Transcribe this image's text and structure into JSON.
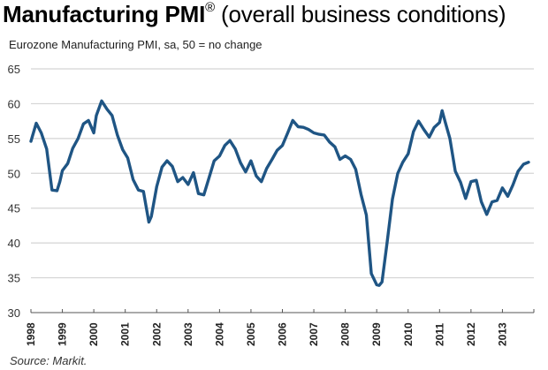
{
  "header": {
    "title_bold": "Manufacturing PMI",
    "title_mark": "®",
    "title_rest": " (overall business conditions)",
    "subtitle": "Eurozone Manufacturing PMI, sa, 50 = no change"
  },
  "footer": {
    "source": "Source: Markit."
  },
  "colors": {
    "line": "#1f5584",
    "grid": "#d4d4d4",
    "axis": "#555555"
  },
  "chart_data": {
    "type": "line",
    "title": "Manufacturing PMI® (overall business conditions)",
    "subtitle": "Eurozone Manufacturing PMI, sa, 50 = no change",
    "xlabel": "",
    "ylabel": "",
    "ylim": [
      30,
      65
    ],
    "yticks": [
      30,
      35,
      40,
      45,
      50,
      55,
      60,
      65
    ],
    "xlim": [
      1998,
      2014
    ],
    "xtick_labels": [
      "1998",
      "1999",
      "2000",
      "2001",
      "2002",
      "2003",
      "2004",
      "2005",
      "2006",
      "2007",
      "2008",
      "2009",
      "2010",
      "2011",
      "2012",
      "2013"
    ],
    "grid": true,
    "legend": "none",
    "series": [
      {
        "name": "Eurozone Manufacturing PMI",
        "x": [
          1998.0,
          1998.17,
          1998.33,
          1998.5,
          1998.67,
          1998.83,
          1998.92,
          1999.0,
          1999.17,
          1999.33,
          1999.5,
          1999.67,
          1999.83,
          2000.0,
          2000.08,
          2000.25,
          2000.42,
          2000.58,
          2000.75,
          2000.92,
          2001.08,
          2001.25,
          2001.42,
          2001.58,
          2001.75,
          2001.83,
          2002.0,
          2002.17,
          2002.33,
          2002.5,
          2002.67,
          2002.83,
          2003.0,
          2003.17,
          2003.33,
          2003.5,
          2003.67,
          2003.83,
          2004.0,
          2004.17,
          2004.33,
          2004.5,
          2004.67,
          2004.83,
          2005.0,
          2005.17,
          2005.33,
          2005.5,
          2005.67,
          2005.83,
          2006.0,
          2006.17,
          2006.33,
          2006.5,
          2006.67,
          2006.83,
          2007.0,
          2007.17,
          2007.33,
          2007.5,
          2007.67,
          2007.83,
          2008.0,
          2008.17,
          2008.33,
          2008.5,
          2008.67,
          2008.83,
          2009.0,
          2009.08,
          2009.17,
          2009.33,
          2009.5,
          2009.67,
          2009.83,
          2010.0,
          2010.17,
          2010.33,
          2010.5,
          2010.67,
          2010.83,
          2011.0,
          2011.08,
          2011.17,
          2011.33,
          2011.5,
          2011.67,
          2011.83,
          2012.0,
          2012.17,
          2012.33,
          2012.5,
          2012.67,
          2012.83,
          2013.0,
          2013.17,
          2013.33,
          2013.5,
          2013.67,
          2013.83
        ],
        "values": [
          54.6,
          57.2,
          55.8,
          53.5,
          47.6,
          47.5,
          48.8,
          50.4,
          51.4,
          53.6,
          55.0,
          57.1,
          57.6,
          55.8,
          58.3,
          60.4,
          59.2,
          58.3,
          55.5,
          53.4,
          52.2,
          49.1,
          47.6,
          47.4,
          43.0,
          43.8,
          48.1,
          50.9,
          51.8,
          51.0,
          48.8,
          49.4,
          48.4,
          50.1,
          47.1,
          46.9,
          49.4,
          51.8,
          52.5,
          54.0,
          54.7,
          53.5,
          51.5,
          50.2,
          51.8,
          49.6,
          48.8,
          50.7,
          52.0,
          53.3,
          54.0,
          55.8,
          57.6,
          56.7,
          56.6,
          56.3,
          55.8,
          55.6,
          55.5,
          54.5,
          53.8,
          52.0,
          52.5,
          52.0,
          50.6,
          47.0,
          44.0,
          35.6,
          34.0,
          33.9,
          34.4,
          40.0,
          46.3,
          50.0,
          51.6,
          52.8,
          56.0,
          57.5,
          56.3,
          55.2,
          56.6,
          57.3,
          59.0,
          57.5,
          55.0,
          50.3,
          48.7,
          46.4,
          48.8,
          49.0,
          45.9,
          44.1,
          45.9,
          46.1,
          47.9,
          46.7,
          48.3,
          50.3,
          51.3,
          51.6
        ]
      }
    ]
  }
}
